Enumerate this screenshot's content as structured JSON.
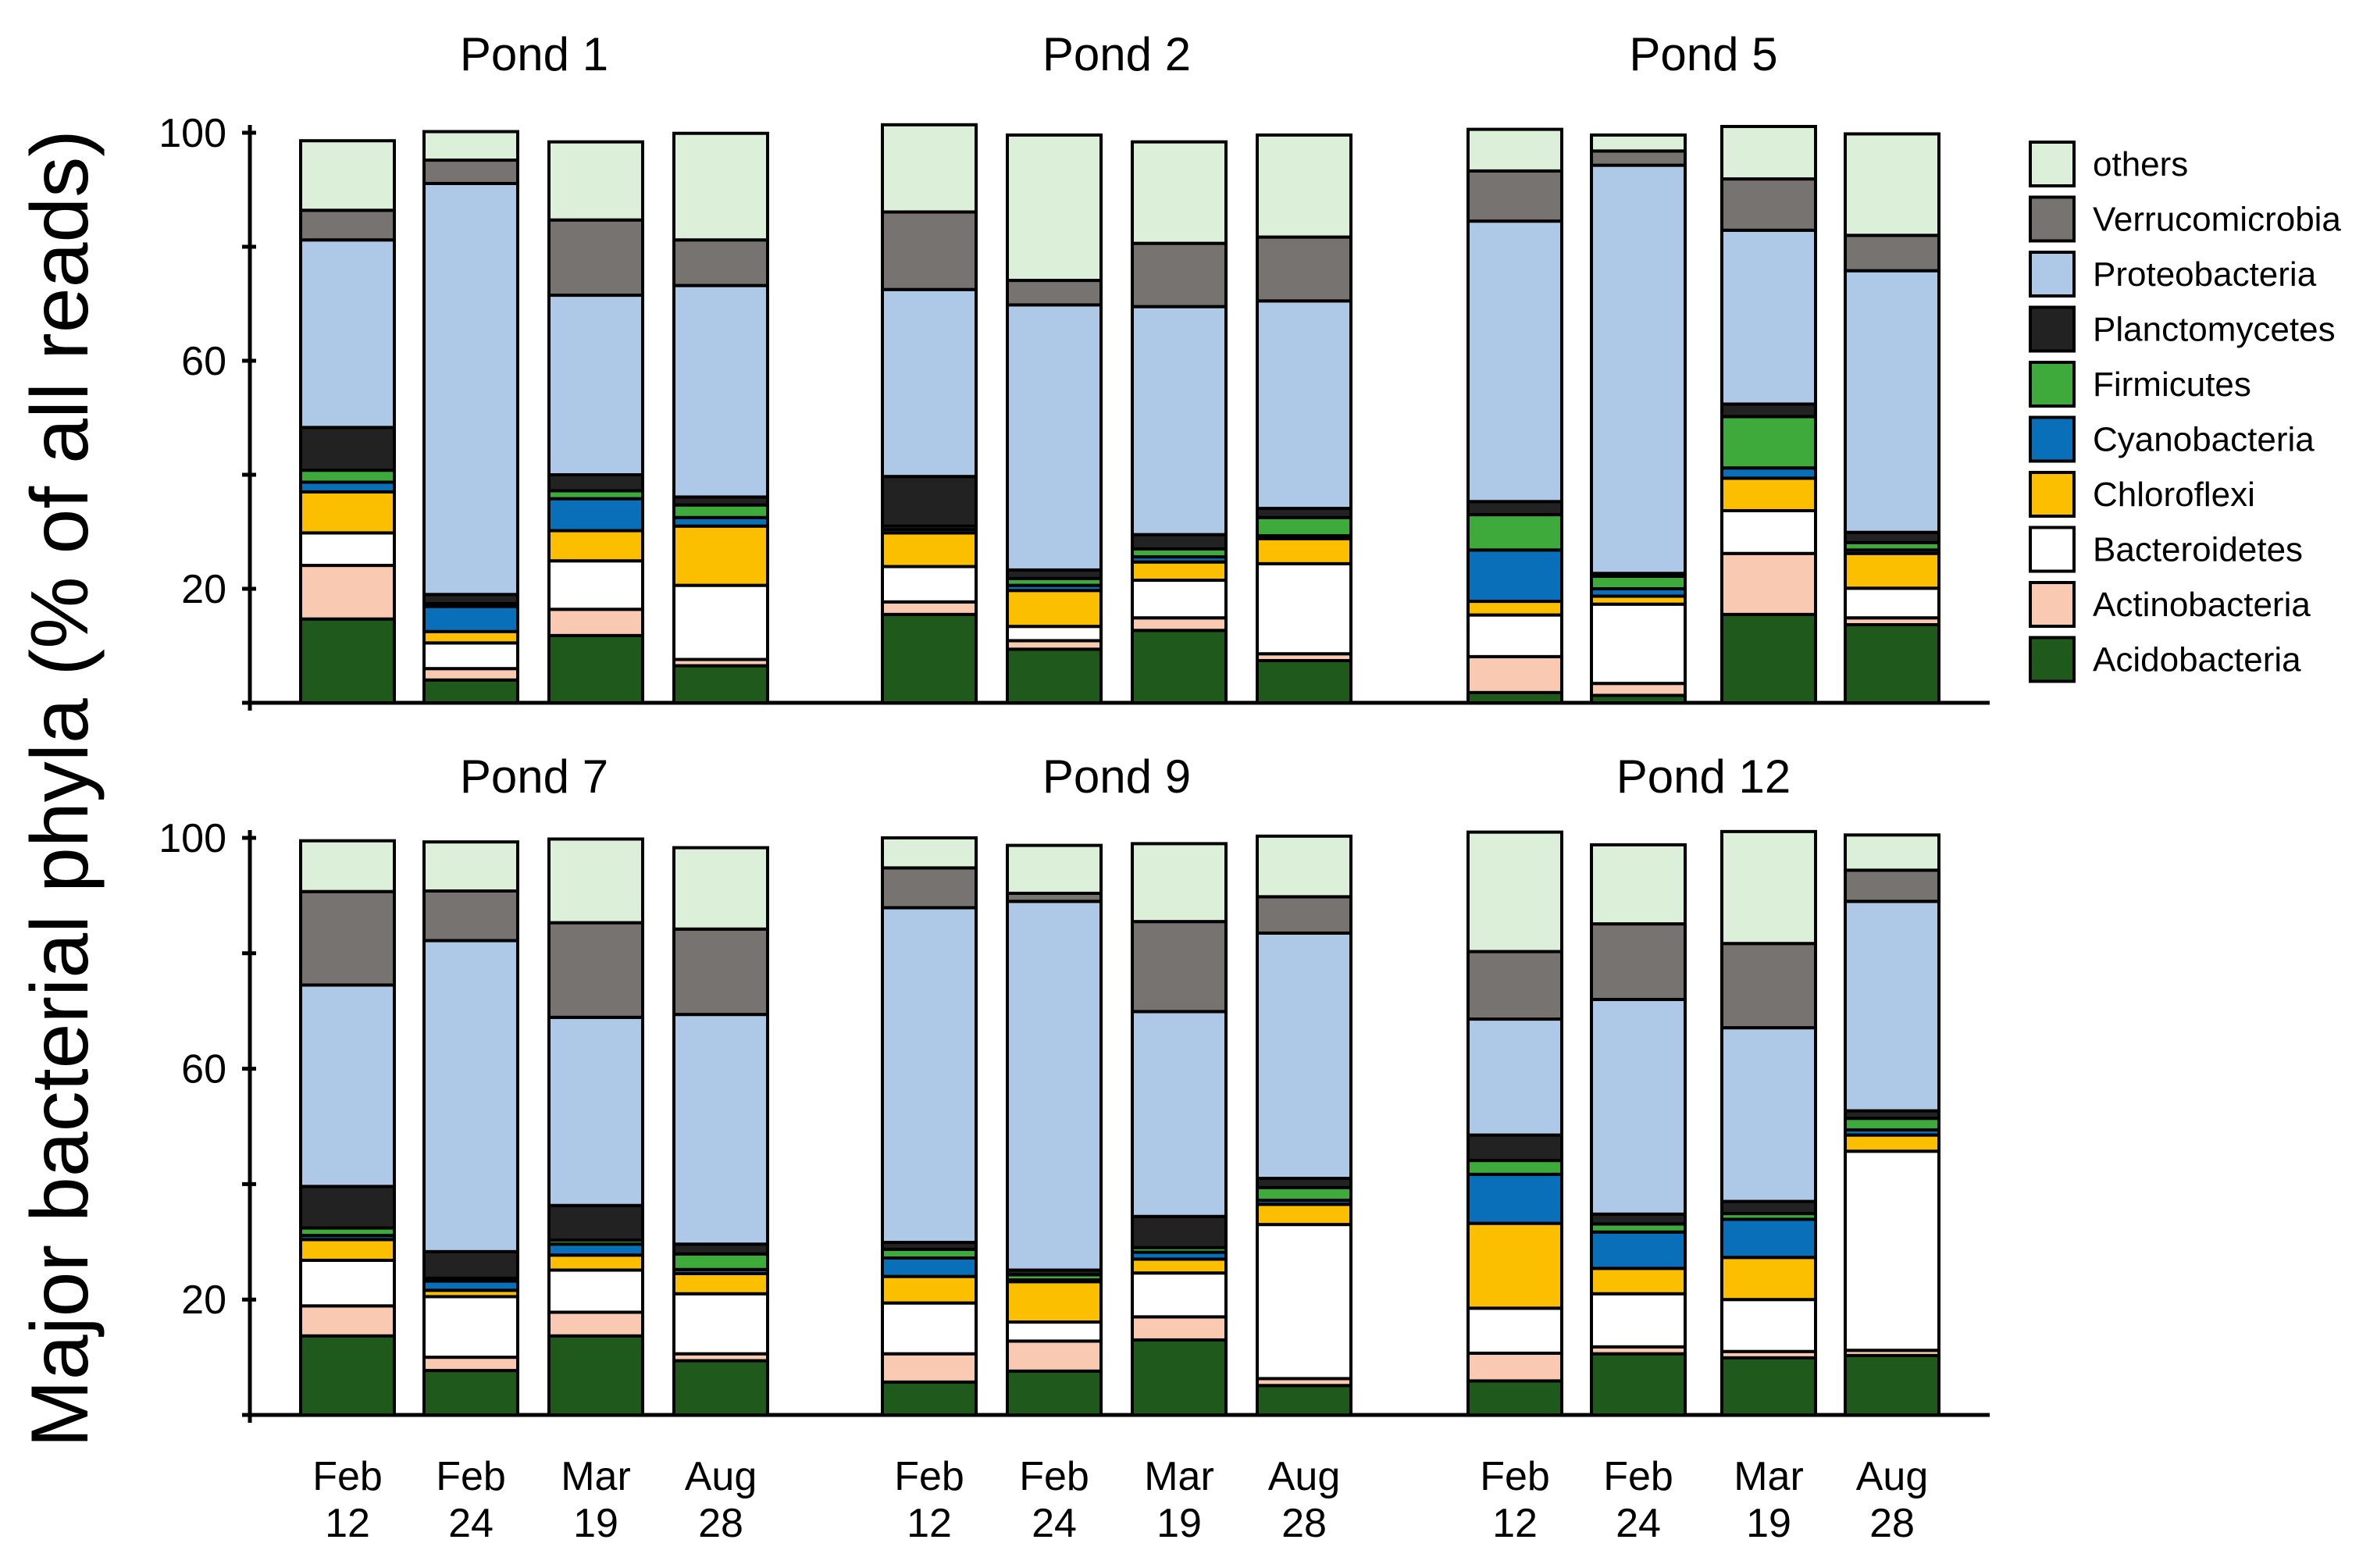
{
  "chart_data": {
    "type": "bar",
    "stacked": true,
    "ylabel": "Major bacterial phyla (% of all reads)",
    "ylim": [
      0,
      100
    ],
    "yticks": [
      20,
      60,
      100
    ],
    "categories": [
      "Feb\n12",
      "Feb\n24",
      "Mar\n19",
      "Aug\n28"
    ],
    "legend_position": "right",
    "phyla": [
      {
        "name": "Acidobacteria",
        "color": "#1f5a1c"
      },
      {
        "name": "Actinobacteria",
        "color": "#f9c9b1"
      },
      {
        "name": "Bacteroidetes",
        "color": "#ffffff"
      },
      {
        "name": "Chloroflexi",
        "color": "#fbbf00"
      },
      {
        "name": "Cyanobacteria",
        "color": "#0a6fb9"
      },
      {
        "name": "Firmicutes",
        "color": "#3eaa3c"
      },
      {
        "name": "Planctomycetes",
        "color": "#222222"
      },
      {
        "name": "Proteobacteria",
        "color": "#aec8e8"
      },
      {
        "name": "Verrucomicrobia",
        "color": "#777370"
      },
      {
        "name": "others",
        "color": "#dcefd9"
      }
    ],
    "panels": [
      {
        "title": "Pond 1",
        "bars": [
          [
            14.7,
            9.4,
            5.7,
            7.2,
            1.7,
            2.1,
            7.5,
            32.9,
            5.2,
            12.2
          ],
          [
            4,
            2,
            4.5,
            2,
            4.4,
            0.5,
            1.6,
            72.1,
            4.1,
            5
          ],
          [
            11.8,
            4.6,
            8.5,
            5.3,
            5.6,
            1.4,
            2.8,
            31.5,
            13.2,
            13.7
          ],
          [
            6.5,
            1.1,
            13,
            10.4,
            1.5,
            2.2,
            1.4,
            37.1,
            8,
            18.7
          ]
        ]
      },
      {
        "title": "Pond 2",
        "bars": [
          [
            15.5,
            2.2,
            6.2,
            5.9,
            0.6,
            0.6,
            8.7,
            32.8,
            13.6,
            15.3
          ],
          [
            9.4,
            1.5,
            2.5,
            6.3,
            0.9,
            1.2,
            1.5,
            46.5,
            4.3,
            25.5
          ],
          [
            12.7,
            2.2,
            6.6,
            3.2,
            0.9,
            1.4,
            2.5,
            40,
            11.1,
            17.8
          ],
          [
            7.4,
            1.2,
            15.8,
            4.4,
            0.5,
            3.2,
            1.6,
            36.4,
            11.2,
            17.9
          ]
        ]
      },
      {
        "title": "Pond 5",
        "bars": [
          [
            1.8,
            6.3,
            7.3,
            2.4,
            9,
            6.2,
            2.3,
            49.2,
            8.8,
            7.3
          ],
          [
            1.3,
            2.1,
            13.9,
            1.4,
            1.3,
            2.2,
            0.5,
            71.6,
            2.5,
            2.8
          ],
          [
            15.5,
            10.7,
            7.5,
            5.7,
            1.8,
            9,
            2.2,
            30.5,
            9,
            9.2
          ],
          [
            13.7,
            1.2,
            5.2,
            6.1,
            0.6,
            1.3,
            1.8,
            45.9,
            6.2,
            17.8
          ]
        ]
      },
      {
        "title": "Pond 7",
        "bars": [
          [
            13.7,
            5.2,
            7.9,
            3.6,
            0.7,
            1.3,
            7.2,
            34.9,
            16.2,
            8.8
          ],
          [
            7.7,
            2.3,
            10.5,
            1.1,
            1.6,
            0.5,
            4.6,
            53.9,
            8.6,
            8.5
          ],
          [
            13.7,
            4.1,
            7.3,
            2.6,
            1.9,
            0.7,
            6,
            32.6,
            16.4,
            14.5
          ],
          [
            9.4,
            1.2,
            10.4,
            3.5,
            0.7,
            2.7,
            1.7,
            39.8,
            14.8,
            14.1
          ]
        ]
      },
      {
        "title": "Pond 9",
        "bars": [
          [
            5.7,
            4.9,
            8.8,
            4.6,
            3.2,
            1.5,
            1.2,
            58,
            6.9,
            5.2
          ],
          [
            7.6,
            5.2,
            3.3,
            7,
            0.3,
            0.9,
            0.8,
            63.9,
            1.4,
            8.3
          ],
          [
            13,
            4,
            7.6,
            2.4,
            1.2,
            0.8,
            5.4,
            35.5,
            15.6,
            13.5
          ],
          [
            5.1,
            1.2,
            26.7,
            3.5,
            0.7,
            2.2,
            1.6,
            42.5,
            6.3,
            10.5
          ]
        ]
      },
      {
        "title": "Pond 12",
        "bars": [
          [
            5.9,
            4.8,
            7.8,
            14.7,
            8.5,
            2.4,
            4.4,
            20.1,
            11.7,
            20.7
          ],
          [
            10.6,
            1.2,
            9.2,
            4.4,
            6.3,
            1.4,
            1.7,
            37.2,
            13.1,
            13.7
          ],
          [
            9.9,
            1.1,
            9,
            7.3,
            6.6,
            1,
            2.1,
            30.1,
            14.6,
            19.4
          ],
          [
            10.3,
            0.9,
            34.5,
            2.8,
            0.9,
            2,
            1.3,
            36.3,
            5.4,
            6.1
          ]
        ]
      }
    ]
  }
}
